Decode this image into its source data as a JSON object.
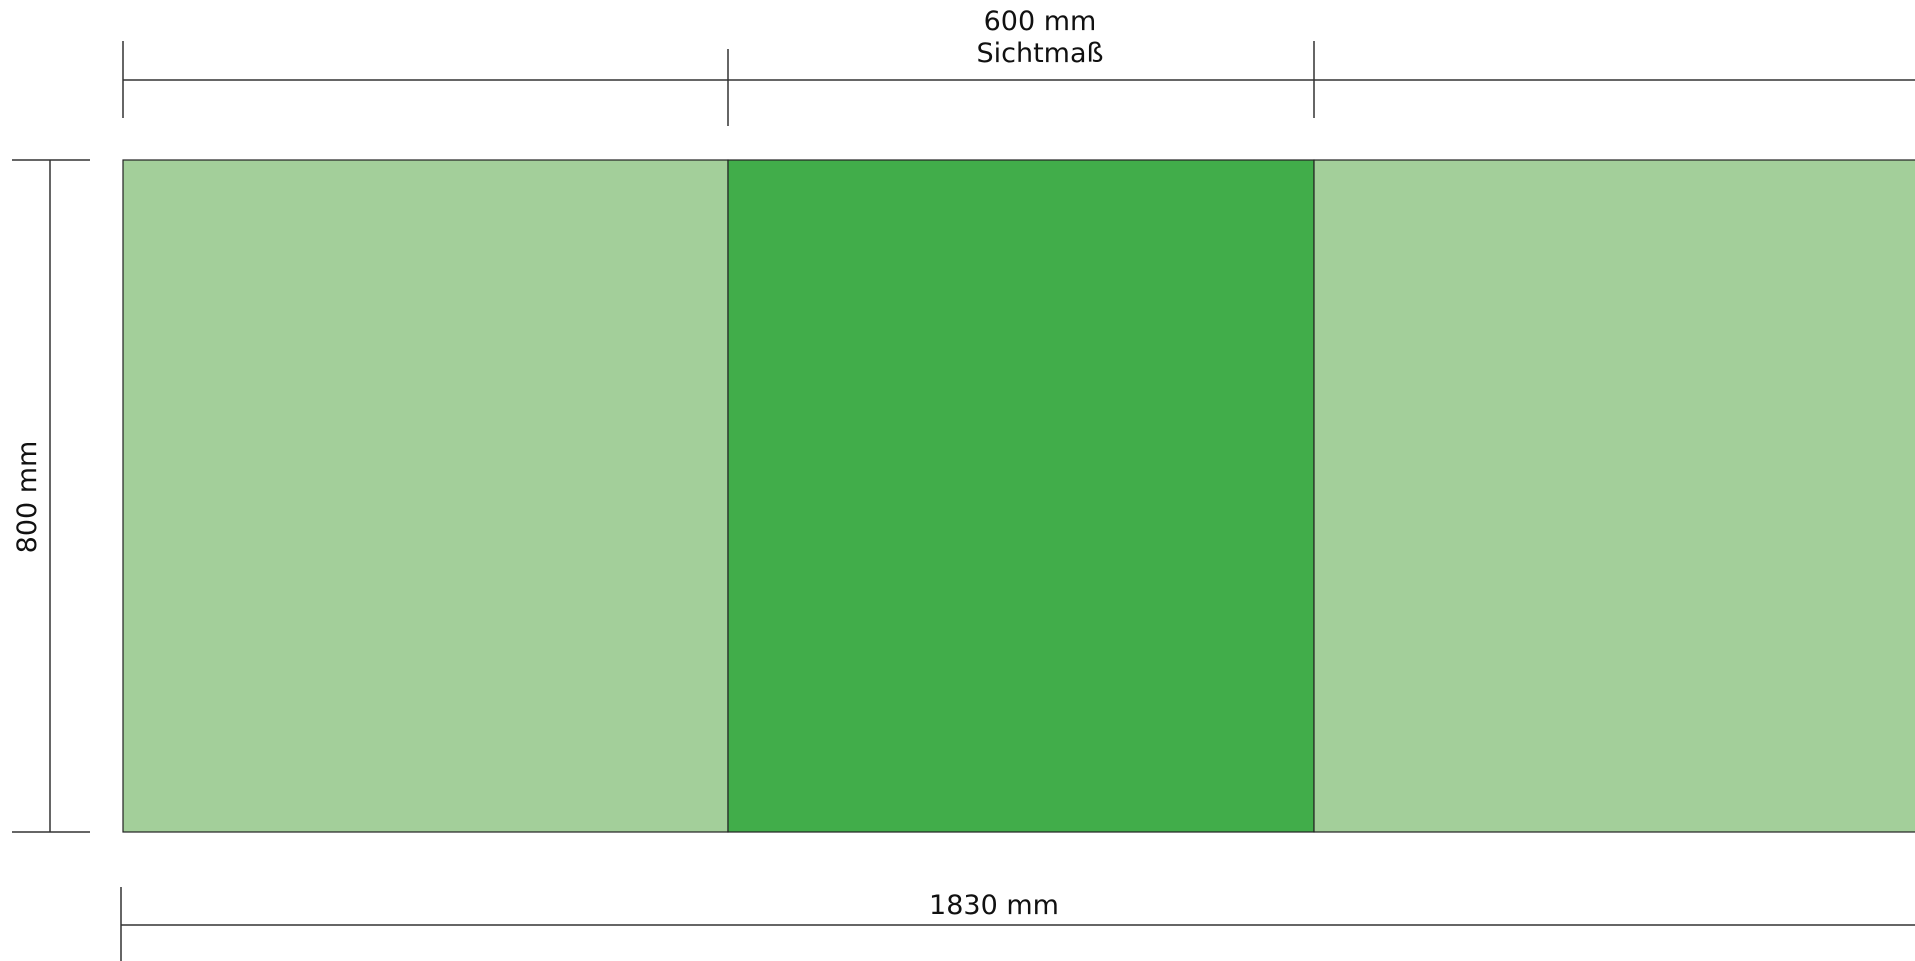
{
  "dimensions": {
    "visible_width_value": "600 mm",
    "visible_width_caption": "Sichtmaß",
    "height_value": "800 mm",
    "total_width_value": "1830 mm"
  },
  "panels": {
    "left_color": "#a3cf9a",
    "center_color": "#41ad4a",
    "right_color": "#a3cf9a",
    "outline_color": "#222222"
  }
}
